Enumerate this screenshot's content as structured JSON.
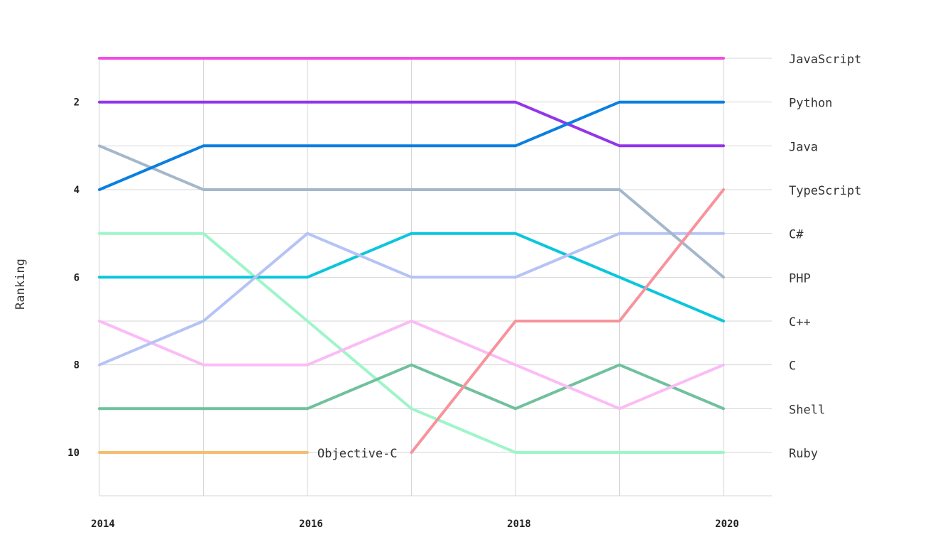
{
  "chart_data": {
    "type": "line",
    "ylabel": "Ranking",
    "xlabel": "",
    "x": [
      2014,
      2015,
      2016,
      2017,
      2018,
      2019,
      2020
    ],
    "x_tick_labels": [
      "2014",
      "2016",
      "2018",
      "2020"
    ],
    "x_tick_values": [
      2014,
      2016,
      2018,
      2020
    ],
    "y_tick_labels": [
      "2",
      "4",
      "6",
      "8",
      "10"
    ],
    "y_tick_values": [
      2,
      4,
      6,
      8,
      10
    ],
    "ylim": [
      11,
      1
    ],
    "y_inverted": true,
    "grid": true,
    "legend": "right (series labels at line ends)",
    "series": [
      {
        "name": "JavaScript",
        "color": "#ef4de8",
        "points": [
          [
            2014,
            1
          ],
          [
            2015,
            1
          ],
          [
            2016,
            1
          ],
          [
            2017,
            1
          ],
          [
            2018,
            1
          ],
          [
            2019,
            1
          ],
          [
            2020,
            1
          ]
        ]
      },
      {
        "name": "Python",
        "color": "#0a7fe0",
        "points": [
          [
            2014,
            4
          ],
          [
            2015,
            3
          ],
          [
            2016,
            3
          ],
          [
            2017,
            3
          ],
          [
            2018,
            3
          ],
          [
            2019,
            2
          ],
          [
            2020,
            2
          ]
        ]
      },
      {
        "name": "Java",
        "color": "#9236ea",
        "points": [
          [
            2014,
            2
          ],
          [
            2015,
            2
          ],
          [
            2016,
            2
          ],
          [
            2017,
            2
          ],
          [
            2018,
            2
          ],
          [
            2019,
            3
          ],
          [
            2020,
            3
          ]
        ]
      },
      {
        "name": "TypeScript",
        "color": "#f7939c",
        "points": [
          [
            2017,
            10
          ],
          [
            2018,
            7
          ],
          [
            2019,
            7
          ],
          [
            2020,
            4
          ]
        ]
      },
      {
        "name": "C#",
        "color": "#b5c3f5",
        "points": [
          [
            2014,
            8
          ],
          [
            2015,
            7
          ],
          [
            2016,
            5
          ],
          [
            2017,
            6
          ],
          [
            2018,
            6
          ],
          [
            2019,
            5
          ],
          [
            2020,
            5
          ]
        ]
      },
      {
        "name": "PHP",
        "color": "#a4b7cb",
        "points": [
          [
            2014,
            3
          ],
          [
            2015,
            4
          ],
          [
            2016,
            4
          ],
          [
            2017,
            4
          ],
          [
            2018,
            4
          ],
          [
            2019,
            4
          ],
          [
            2020,
            6
          ]
        ]
      },
      {
        "name": "C++",
        "color": "#0ac6dc",
        "points": [
          [
            2014,
            6
          ],
          [
            2015,
            6
          ],
          [
            2016,
            6
          ],
          [
            2017,
            5
          ],
          [
            2018,
            5
          ],
          [
            2019,
            6
          ],
          [
            2020,
            7
          ]
        ]
      },
      {
        "name": "C",
        "color": "#fbbcf5",
        "points": [
          [
            2014,
            7
          ],
          [
            2015,
            8
          ],
          [
            2016,
            8
          ],
          [
            2017,
            7
          ],
          [
            2018,
            8
          ],
          [
            2019,
            9
          ],
          [
            2020,
            8
          ]
        ]
      },
      {
        "name": "Shell",
        "color": "#6fc19c",
        "points": [
          [
            2014,
            9
          ],
          [
            2015,
            9
          ],
          [
            2016,
            9
          ],
          [
            2017,
            8
          ],
          [
            2018,
            9
          ],
          [
            2019,
            8
          ],
          [
            2020,
            9
          ]
        ]
      },
      {
        "name": "Ruby",
        "color": "#9ef5c9",
        "points": [
          [
            2014,
            5
          ],
          [
            2015,
            5
          ],
          [
            2016,
            7
          ],
          [
            2017,
            9
          ],
          [
            2018,
            10
          ],
          [
            2019,
            10
          ],
          [
            2020,
            10
          ]
        ]
      },
      {
        "name": "Objective-C",
        "color": "#f5bd70",
        "points": [
          [
            2014,
            10
          ],
          [
            2015,
            10
          ],
          [
            2016,
            10
          ]
        ]
      }
    ],
    "right_labels": [
      "JavaScript",
      "Python",
      "Java",
      "TypeScript",
      "C#",
      "PHP",
      "C++",
      "C",
      "Shell",
      "Ruby"
    ],
    "inline_label": "Objective-C"
  }
}
